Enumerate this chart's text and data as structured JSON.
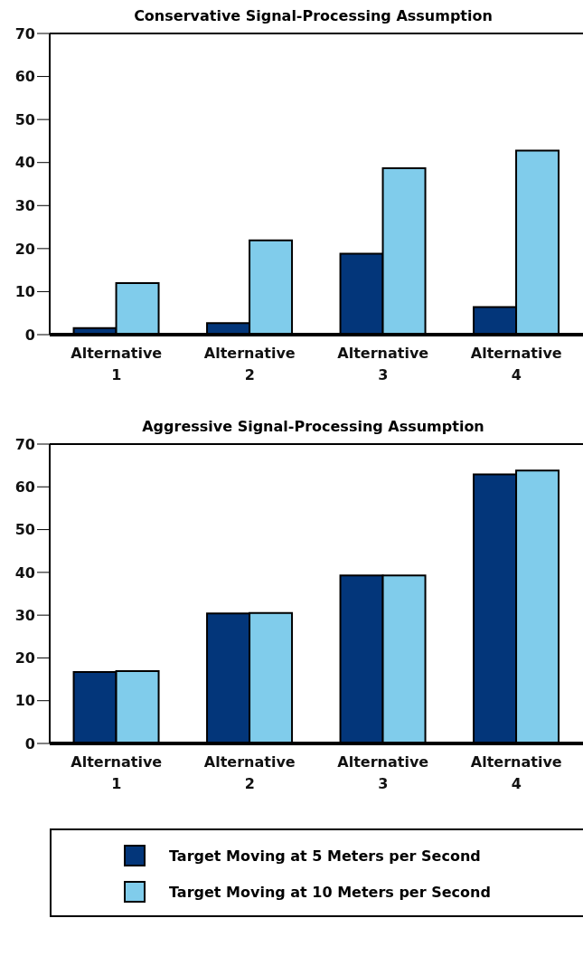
{
  "chart_data": [
    {
      "type": "bar",
      "title": "Conservative Signal-Processing Assumption",
      "categories": [
        "Alternative 1",
        "Alternative 2",
        "Alternative 3",
        "Alternative 4"
      ],
      "series": [
        {
          "color": "#03367a",
          "values": [
            1.5,
            2.7,
            18.8,
            6.4
          ]
        },
        {
          "color": "#80cceb",
          "values": [
            12,
            21.9,
            38.7,
            42.8
          ]
        }
      ],
      "ylim": [
        0,
        70
      ],
      "yticks": [
        0,
        10,
        20,
        30,
        40,
        50,
        60,
        70
      ],
      "grid": false,
      "legend": false
    },
    {
      "type": "bar",
      "title": "Aggressive Signal-Processing Assumption",
      "categories": [
        "Alternative 1",
        "Alternative 2",
        "Alternative 3",
        "Alternative 4"
      ],
      "series": [
        {
          "name": "Target Moving at 5 Meters per Second",
          "color": "#03367a",
          "values": [
            16.7,
            30.4,
            39.3,
            62.9
          ]
        },
        {
          "name": "Target Moving at 10 Meters per Second",
          "color": "#80cceb",
          "values": [
            16.9,
            30.5,
            39.3,
            63.8
          ]
        }
      ],
      "ylim": [
        0,
        70
      ],
      "yticks": [
        0,
        10,
        20,
        30,
        40,
        50,
        60,
        70
      ],
      "grid": false,
      "legend": "bottom"
    }
  ]
}
